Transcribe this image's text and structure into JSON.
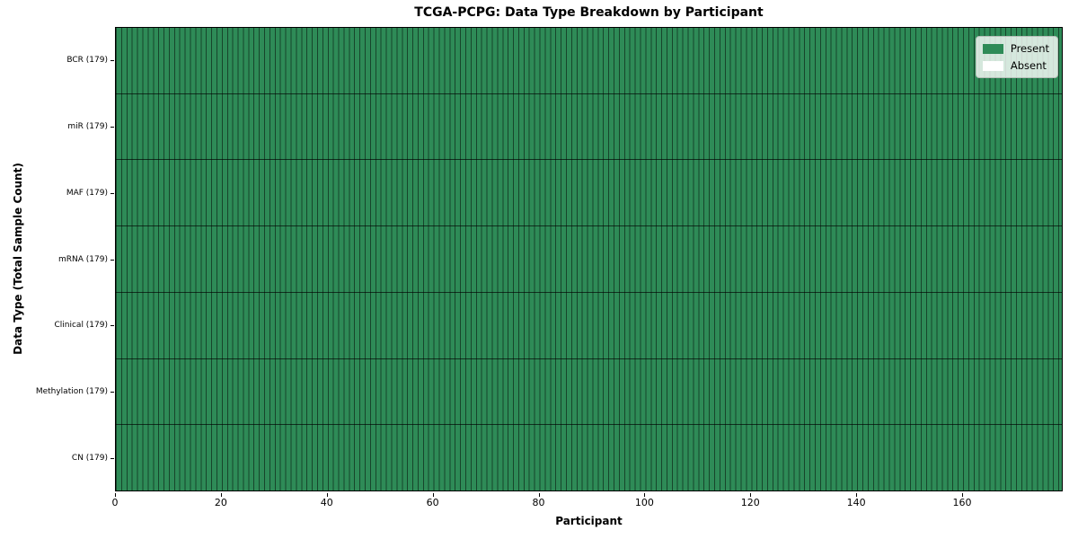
{
  "chart": {
    "title": "TCGA-PCPG: Data Type Breakdown by Participant",
    "xlabel": "Participant",
    "ylabel": "Data Type (Total Sample Count)"
  },
  "legend": {
    "present_label": "Present",
    "absent_label": "Absent"
  },
  "chart_data": {
    "type": "heatmap",
    "title": "TCGA-PCPG: Data Type Breakdown by Participant",
    "xlabel": "Participant",
    "ylabel": "Data Type (Total Sample Count)",
    "x_range": [
      0,
      179
    ],
    "x_ticks": [
      0,
      20,
      40,
      60,
      80,
      100,
      120,
      140,
      160
    ],
    "n_participants": 179,
    "rows": [
      {
        "data_type": "BCR",
        "label": "BCR (179)",
        "total_samples": 179,
        "present_count": 179,
        "absent_count": 0
      },
      {
        "data_type": "miR",
        "label": "miR (179)",
        "total_samples": 179,
        "present_count": 179,
        "absent_count": 0
      },
      {
        "data_type": "MAF",
        "label": "MAF (179)",
        "total_samples": 179,
        "present_count": 179,
        "absent_count": 0
      },
      {
        "data_type": "mRNA",
        "label": "mRNA (179)",
        "total_samples": 179,
        "present_count": 179,
        "absent_count": 0
      },
      {
        "data_type": "Clinical",
        "label": "Clinical (179)",
        "total_samples": 179,
        "present_count": 179,
        "absent_count": 0
      },
      {
        "data_type": "Methylation",
        "label": "Methylation (179)",
        "total_samples": 179,
        "present_count": 179,
        "absent_count": 0
      },
      {
        "data_type": "CN",
        "label": "CN (179)",
        "total_samples": 179,
        "present_count": 179,
        "absent_count": 0
      }
    ],
    "cell_values_note": "Every cell is Present (value 1) for all 179 participants in all 7 data-type rows; no Absent cells are visible.",
    "legend_entries": [
      "Present",
      "Absent"
    ],
    "legend_position": "upper right",
    "grid": "thin dark cell borders between participant columns and data-type rows",
    "colors": {
      "present": "#2e8b57",
      "absent": "#ffffff",
      "cell_edge": "rgba(0,0,0,0.5)",
      "row_separator": "rgba(0,0,0,0.65)",
      "spine": "#000000",
      "legend_bg": "rgba(255,255,255,0.8)"
    }
  }
}
